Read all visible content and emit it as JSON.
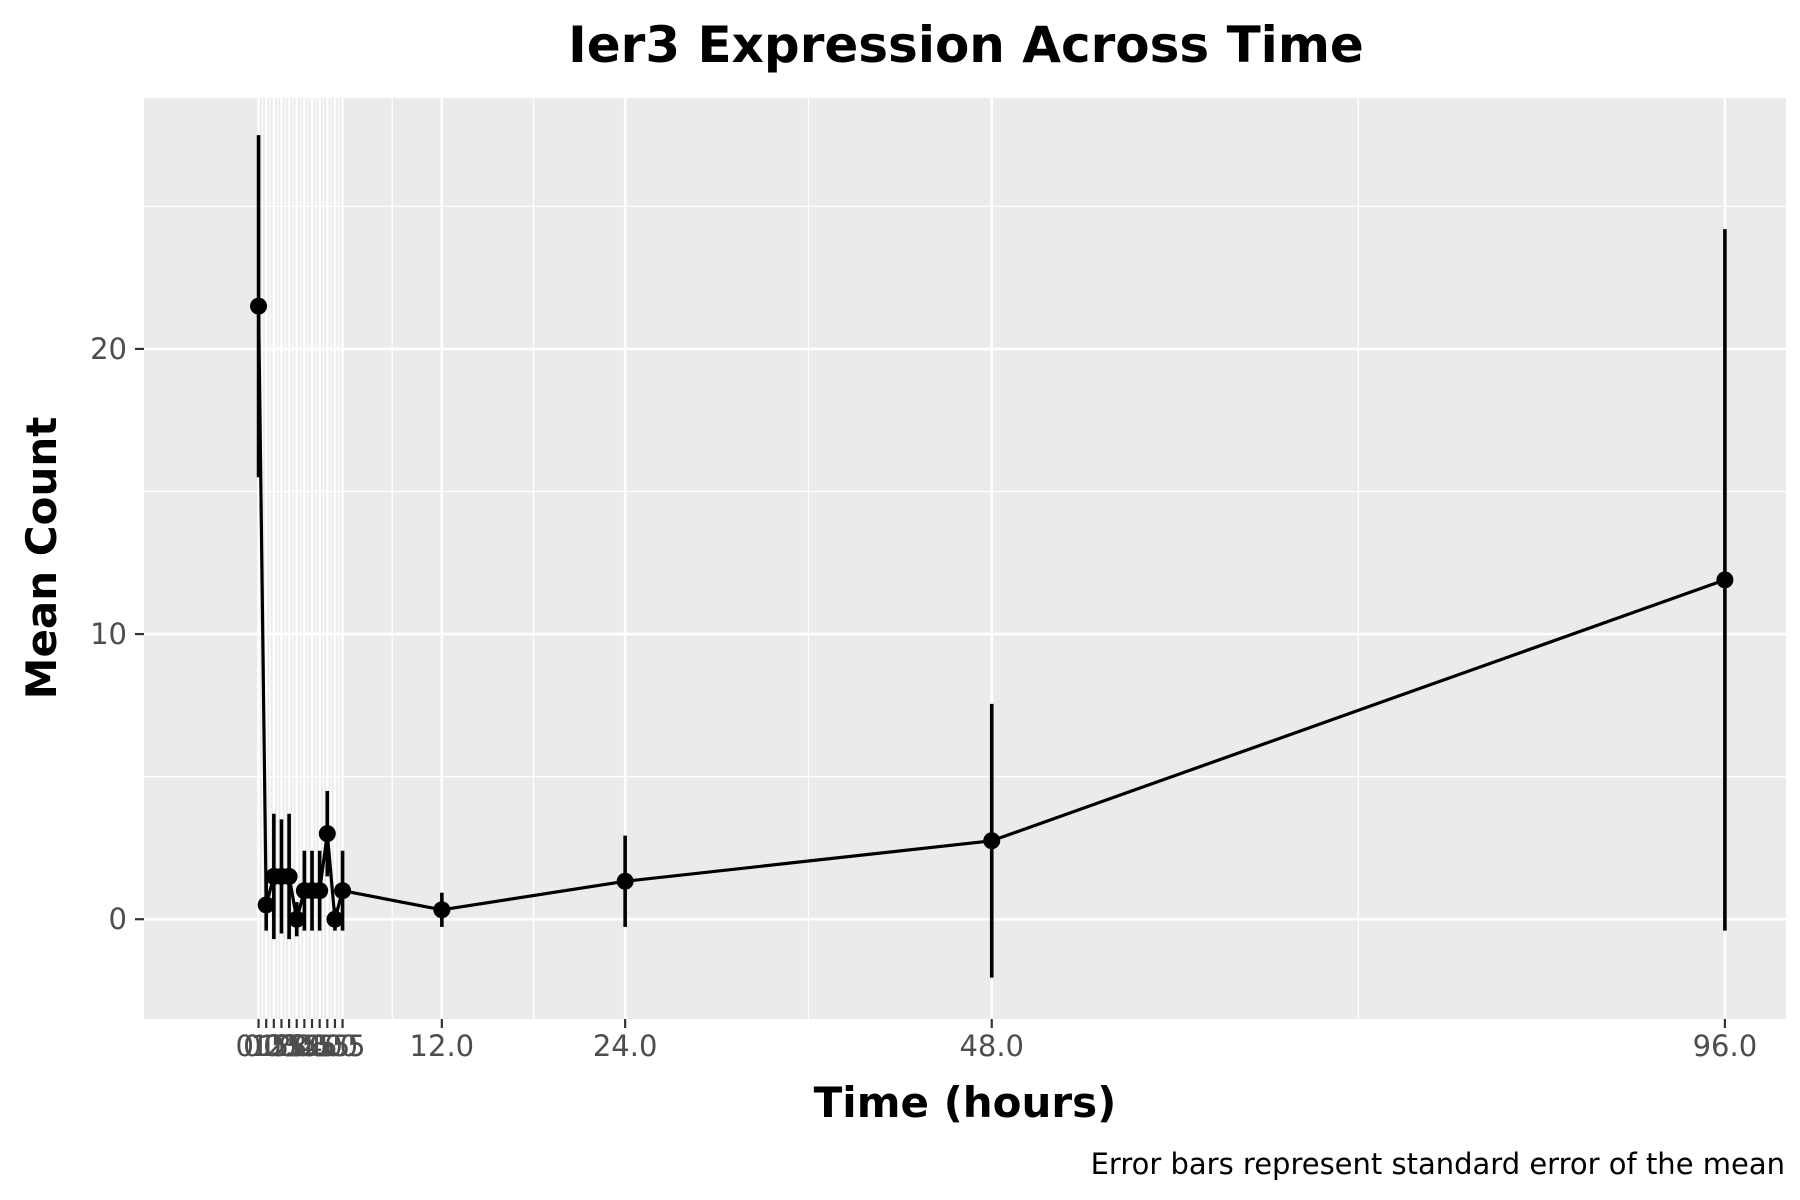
{
  "chart_data": {
    "type": "line",
    "title": "Ier3 Expression Across Time",
    "xlabel": "Time (hours)",
    "ylabel": "Mean Count",
    "caption": "Error bars represent standard error of the mean",
    "xlim": [
      -7.5,
      100.0
    ],
    "ylim": [
      -3.5,
      28.8
    ],
    "grid": true,
    "legend": "none",
    "x_ticks": [
      0.0,
      0.5,
      1.0,
      1.5,
      2.0,
      2.5,
      3.0,
      3.5,
      4.0,
      4.5,
      5.0,
      5.5,
      12.0,
      24.0,
      48.0,
      96.0
    ],
    "x_tick_labels": [
      "0.0",
      "0.5",
      "1.0",
      "1.5",
      "2.0",
      "2.5",
      "3.0",
      "3.5",
      "4.0",
      "4.5",
      "5.0",
      "5.5",
      "12.0",
      "24.0",
      "48.0",
      "96.0"
    ],
    "y_ticks": [
      0,
      10,
      20
    ],
    "y_tick_labels": [
      "0",
      "10",
      "20"
    ],
    "series": [
      {
        "x": [
          0.0,
          0.5,
          1.0,
          1.5,
          2.0,
          2.5,
          3.0,
          3.5,
          4.0,
          4.5,
          5.0,
          5.5,
          12.0,
          24.0,
          48.0,
          96.0
        ],
        "y": [
          21.5,
          0.5,
          1.5,
          1.5,
          1.5,
          0.0,
          1.0,
          1.0,
          1.0,
          3.0,
          0.0,
          1.0,
          0.33,
          1.33,
          2.75,
          11.9
        ],
        "err": [
          6.0,
          0.9,
          2.2,
          2.0,
          2.2,
          0.6,
          1.4,
          1.4,
          1.4,
          1.5,
          0.4,
          1.4,
          0.6,
          1.6,
          4.8,
          12.3
        ]
      }
    ],
    "colors": {
      "panel_background": "#ebebeb",
      "grid": "#ffffff",
      "line": "#000000",
      "tick_text": "#4d4d4d"
    }
  }
}
